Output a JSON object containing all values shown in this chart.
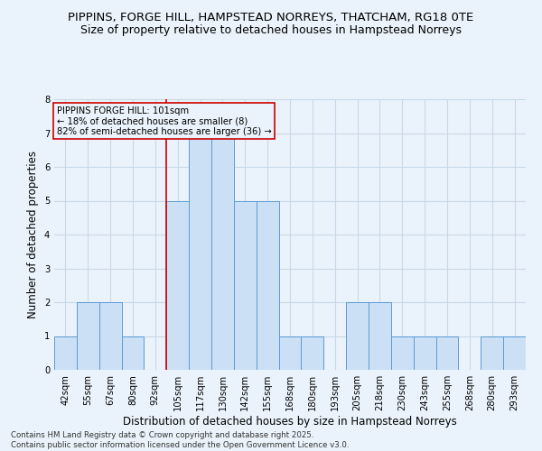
{
  "title1": "PIPPINS, FORGE HILL, HAMPSTEAD NORREYS, THATCHAM, RG18 0TE",
  "title2": "Size of property relative to detached houses in Hampstead Norreys",
  "xlabel": "Distribution of detached houses by size in Hampstead Norreys",
  "ylabel": "Number of detached properties",
  "categories": [
    "42sqm",
    "55sqm",
    "67sqm",
    "80sqm",
    "92sqm",
    "105sqm",
    "117sqm",
    "130sqm",
    "142sqm",
    "155sqm",
    "168sqm",
    "180sqm",
    "193sqm",
    "205sqm",
    "218sqm",
    "230sqm",
    "243sqm",
    "255sqm",
    "268sqm",
    "280sqm",
    "293sqm"
  ],
  "values": [
    1,
    2,
    2,
    1,
    0,
    5,
    7,
    7,
    5,
    5,
    1,
    1,
    0,
    2,
    2,
    1,
    1,
    1,
    0,
    1,
    1
  ],
  "bar_color": "#cce0f5",
  "bar_edge_color": "#5b9bd5",
  "subject_line_color": "#cc0000",
  "annotation_title": "PIPPINS FORGE HILL: 101sqm",
  "annotation_line1": "← 18% of detached houses are smaller (8)",
  "annotation_line2": "82% of semi-detached houses are larger (36) →",
  "annotation_box_color": "#cc0000",
  "ylim": [
    0,
    8
  ],
  "yticks": [
    0,
    1,
    2,
    3,
    4,
    5,
    6,
    7,
    8
  ],
  "footnote1": "Contains HM Land Registry data © Crown copyright and database right 2025.",
  "footnote2": "Contains public sector information licensed under the Open Government Licence v3.0.",
  "bg_color": "#eaf3fb",
  "grid_color": "#c8d8e8",
  "title_fontsize": 9.5,
  "axis_label_fontsize": 8.5,
  "tick_fontsize": 7.2
}
